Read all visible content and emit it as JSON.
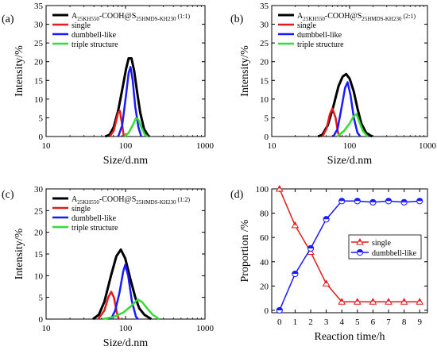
{
  "colors": {
    "black": "#000000",
    "red": "#e31a1c",
    "blue": "#1a1aff",
    "green": "#33dd33"
  },
  "chart_data": [
    {
      "type": "line",
      "panel_label": "(a)",
      "title": "",
      "xlabel": "Size/d.nm",
      "ylabel": "Intensity/%",
      "x_scale": "log",
      "xlim": [
        10,
        1000
      ],
      "ylim": [
        0,
        35
      ],
      "x_ticks": [
        "10",
        "100",
        "1000"
      ],
      "y_ticks": [
        "0",
        "5",
        "10",
        "15",
        "20",
        "25",
        "30",
        "35"
      ],
      "legend_position": "top-right",
      "legend_main": {
        "base": "A",
        "sub": "25KH550",
        "mid": "-COOH@S",
        "sub2": "25HMDS-KH230",
        "tail": " (1:1)"
      },
      "series": [
        {
          "name": "",
          "legend_ref": "main",
          "color": "black",
          "points": [
            [
              55.4,
              0
            ],
            [
              63.1,
              0.5
            ],
            [
              70.9,
              2.5
            ],
            [
              80.9,
              7
            ],
            [
              90.8,
              12.5
            ],
            [
              101.5,
              18
            ],
            [
              109.4,
              20.9
            ],
            [
              118.8,
              20.9
            ],
            [
              128.6,
              17.5
            ],
            [
              139.7,
              12
            ],
            [
              152.9,
              6.5
            ],
            [
              170.9,
              2
            ],
            [
              195.8,
              0
            ]
          ]
        },
        {
          "name": "single",
          "color": "red",
          "points": [
            [
              63.1,
              0
            ],
            [
              70.9,
              1.5
            ],
            [
              80.9,
              6.5
            ],
            [
              85.1,
              6.8
            ],
            [
              90.8,
              3
            ],
            [
              95.2,
              0
            ]
          ]
        },
        {
          "name": "dumbbell-like",
          "color": "blue",
          "points": [
            [
              80.9,
              0
            ],
            [
              90.8,
              3
            ],
            [
              101.5,
              11
            ],
            [
              109.4,
              17
            ],
            [
              115.5,
              18.6
            ],
            [
              122.9,
              15
            ],
            [
              132.4,
              8
            ],
            [
              145.1,
              2.5
            ],
            [
              157.8,
              0
            ]
          ]
        },
        {
          "name": "triple structure",
          "color": "green",
          "points": [
            [
              97.4,
              0
            ],
            [
              109.4,
              1
            ],
            [
              122.9,
              3
            ],
            [
              135.2,
              4.9
            ],
            [
              145.1,
              4.5
            ],
            [
              157.8,
              2.5
            ],
            [
              175.3,
              0.5
            ],
            [
              190.5,
              0
            ]
          ]
        }
      ]
    },
    {
      "type": "line",
      "panel_label": "(b)",
      "title": "",
      "xlabel": "Size/d.nm",
      "ylabel": "Intensity/%",
      "x_scale": "log",
      "xlim": [
        10,
        1000
      ],
      "ylim": [
        0,
        35
      ],
      "x_ticks": [
        "10",
        "100",
        "1000"
      ],
      "y_ticks": [
        "0",
        "5",
        "10",
        "15",
        "20",
        "25",
        "30",
        "35"
      ],
      "legend_position": "top-right",
      "legend_main": {
        "base": "A",
        "sub": "25KH550",
        "mid": "-COOH@S",
        "sub2": "25HMDS-KH230",
        "tail": " (2:1)"
      },
      "series": [
        {
          "name": "",
          "legend_ref": "main",
          "color": "black",
          "points": [
            [
              39.3,
              0
            ],
            [
              44.8,
              0.5
            ],
            [
              52.4,
              3
            ],
            [
              61.8,
              8
            ],
            [
              72.1,
              13.5
            ],
            [
              81.4,
              16
            ],
            [
              90.1,
              16.7
            ],
            [
              100,
              15.5
            ],
            [
              113.2,
              12
            ],
            [
              126.3,
              7.5
            ],
            [
              141.3,
              3.5
            ],
            [
              163.1,
              1
            ],
            [
              195.2,
              0
            ]
          ]
        },
        {
          "name": "single",
          "color": "red",
          "points": [
            [
              44.8,
              0
            ],
            [
              50.3,
              2
            ],
            [
              55.9,
              6
            ],
            [
              60,
              7.5
            ],
            [
              66.2,
              5
            ],
            [
              71,
              1
            ],
            [
              75.2,
              0
            ]
          ]
        },
        {
          "name": "dumbbell-like",
          "color": "blue",
          "points": [
            [
              61.8,
              0
            ],
            [
              70,
              2
            ],
            [
              79.3,
              8
            ],
            [
              87.5,
              13
            ],
            [
              94.2,
              14.5
            ],
            [
              102.8,
              11
            ],
            [
              113.2,
              5
            ],
            [
              126.3,
              1
            ],
            [
              137.4,
              0
            ]
          ]
        },
        {
          "name": "triple structure",
          "color": "green",
          "points": [
            [
              69,
              0
            ],
            [
              84.8,
              1.5
            ],
            [
              100,
              3.5
            ],
            [
              113.2,
              5.5
            ],
            [
              122.6,
              6
            ],
            [
              132.6,
              4
            ],
            [
              148.1,
              1.5
            ],
            [
              169.9,
              0
            ]
          ]
        }
      ]
    },
    {
      "type": "line",
      "panel_label": "(c)",
      "title": "",
      "xlabel": "Size/d.nm",
      "ylabel": "Intensity/%",
      "x_scale": "log",
      "xlim": [
        10,
        1000
      ],
      "ylim": [
        0,
        30
      ],
      "x_ticks": [
        "10",
        "100",
        "1000"
      ],
      "y_ticks": [
        "0",
        "5",
        "10",
        "15",
        "20",
        "25",
        "30"
      ],
      "legend_position": "top-right",
      "legend_main": {
        "base": "A",
        "sub": "25KH550",
        "mid": "-COOH@S",
        "sub2": "25HMDS-KH230",
        "tail": " (1:2)"
      },
      "series": [
        {
          "name": "",
          "legend_ref": "main",
          "color": "black",
          "points": [
            [
              38.9,
              0
            ],
            [
              46.1,
              1
            ],
            [
              54.2,
              4
            ],
            [
              65.6,
              10
            ],
            [
              76.7,
              14.5
            ],
            [
              87.2,
              16
            ],
            [
              99.1,
              14
            ],
            [
              115.8,
              9
            ],
            [
              132.6,
              5
            ],
            [
              148.7,
              2.5
            ],
            [
              172.5,
              1
            ],
            [
              210.5,
              0
            ]
          ]
        },
        {
          "name": "single",
          "color": "red",
          "points": [
            [
              45.3,
              0
            ],
            [
              54.2,
              2
            ],
            [
              60.5,
              5
            ],
            [
              66.1,
              6.3
            ],
            [
              71.5,
              5
            ],
            [
              77.8,
              1.5
            ],
            [
              82.2,
              0
            ]
          ]
        },
        {
          "name": "dumbbell-like",
          "color": "blue",
          "points": [
            [
              65.6,
              0
            ],
            [
              74.1,
              2
            ],
            [
              83.7,
              6
            ],
            [
              93.5,
              11
            ],
            [
              99.1,
              12.5
            ],
            [
              107.9,
              10
            ],
            [
              120.6,
              4
            ],
            [
              135.4,
              0.5
            ],
            [
              143.9,
              0
            ]
          ]
        },
        {
          "name": "triple structure",
          "color": "green",
          "points": [
            [
              51.3,
              0
            ],
            [
              71,
              0.5
            ],
            [
              93.5,
              1.5
            ],
            [
              117.6,
              3
            ],
            [
              141.6,
              4.5
            ],
            [
              160.4,
              4
            ],
            [
              186.5,
              2.5
            ],
            [
              219.4,
              1
            ],
            [
              266.1,
              0
            ]
          ]
        }
      ]
    },
    {
      "type": "line",
      "panel_label": "(d)",
      "title": "",
      "xlabel": "Reaction time/h",
      "ylabel": "Proportion /%",
      "x_scale": "linear",
      "xlim": [
        -0.5,
        9.5
      ],
      "ylim": [
        -2,
        100
      ],
      "x_ticks": [
        "0",
        "1",
        "2",
        "3",
        "4",
        "5",
        "6",
        "7",
        "8",
        "9"
      ],
      "y_ticks": [
        "0",
        "20",
        "40",
        "60",
        "80",
        "100"
      ],
      "legend_position": "center-right",
      "series": [
        {
          "name": "single",
          "color": "red",
          "marker": "triangle",
          "x": [
            0,
            1,
            2,
            3,
            4,
            5,
            6,
            7,
            8,
            9
          ],
          "y": [
            100,
            70,
            48,
            22,
            7,
            7,
            7,
            7,
            7,
            7
          ]
        },
        {
          "name": "dumbbell-like",
          "color": "blue",
          "marker": "circle",
          "x": [
            0,
            1,
            2,
            3,
            4,
            5,
            6,
            7,
            8,
            9
          ],
          "y": [
            0,
            30,
            51,
            75,
            90,
            90,
            89,
            90,
            89,
            90
          ]
        }
      ]
    }
  ]
}
